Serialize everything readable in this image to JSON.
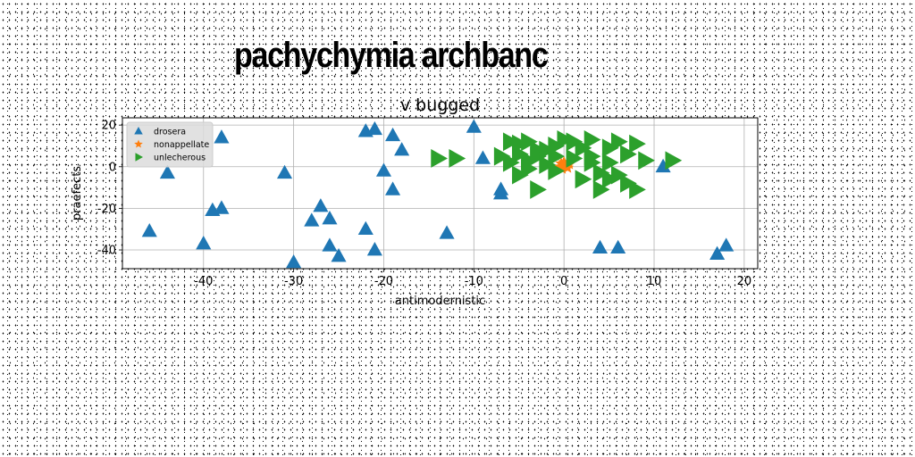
{
  "banner_title": "pachychymia archbanc",
  "chart_data": {
    "type": "scatter",
    "title": "v  bugged",
    "xlabel": "antimodernistic",
    "ylabel": "praefects",
    "xlim": [
      -49,
      21.5
    ],
    "ylim": [
      -49,
      23.5
    ],
    "xticks": [
      -40,
      -30,
      -20,
      -10,
      0,
      10,
      20
    ],
    "yticks": [
      -40,
      -20,
      0,
      20
    ],
    "grid": true,
    "legend": "top-left",
    "series": [
      {
        "name": "drosera",
        "marker": "triangle-up",
        "color": "#1f77b4",
        "points": [
          [
            -46,
            -31
          ],
          [
            -44,
            -3
          ],
          [
            -40,
            -37
          ],
          [
            -39,
            -21
          ],
          [
            -38,
            -20
          ],
          [
            -38,
            14
          ],
          [
            -31,
            -3
          ],
          [
            -30,
            -46
          ],
          [
            -28,
            -26
          ],
          [
            -27,
            -19
          ],
          [
            -26,
            -25
          ],
          [
            -26,
            -38
          ],
          [
            -25,
            -43
          ],
          [
            -22,
            17
          ],
          [
            -22,
            -30
          ],
          [
            -21,
            18
          ],
          [
            -21,
            -40
          ],
          [
            -20,
            -2
          ],
          [
            -19,
            15
          ],
          [
            -19,
            -11
          ],
          [
            -18,
            8
          ],
          [
            -13,
            -32
          ],
          [
            -10,
            19
          ],
          [
            -9,
            4
          ],
          [
            -7,
            -11
          ],
          [
            -7,
            -13
          ],
          [
            4,
            -39
          ],
          [
            6,
            -39
          ],
          [
            11,
            0
          ],
          [
            17,
            -42
          ],
          [
            18,
            -38
          ]
        ]
      },
      {
        "name": "nonappellate",
        "marker": "star",
        "color": "#ff7f0e",
        "points": [
          [
            -0.3,
            1.5
          ],
          [
            0.3,
            0.5
          ],
          [
            -0.2,
            -1
          ],
          [
            0.4,
            -0.5
          ],
          [
            0,
            2.2
          ],
          [
            0.6,
            1.2
          ],
          [
            -0.5,
            0
          ]
        ]
      },
      {
        "name": "unlecherous",
        "marker": "triangle-right",
        "color": "#2ca02c",
        "points": [
          [
            -14,
            4
          ],
          [
            -12,
            4
          ],
          [
            -7,
            5
          ],
          [
            -6,
            12
          ],
          [
            -6,
            2
          ],
          [
            -5,
            6
          ],
          [
            -5,
            11
          ],
          [
            -4,
            12
          ],
          [
            -4,
            3
          ],
          [
            -3,
            8
          ],
          [
            -3,
            5
          ],
          [
            -2,
            1
          ],
          [
            -2,
            8
          ],
          [
            -3,
            -11
          ],
          [
            -1,
            5
          ],
          [
            -1,
            10
          ],
          [
            0,
            13
          ],
          [
            1,
            12
          ],
          [
            1,
            4
          ],
          [
            2,
            -6
          ],
          [
            2,
            9
          ],
          [
            3,
            13
          ],
          [
            3,
            5
          ],
          [
            4,
            -3
          ],
          [
            4,
            -11
          ],
          [
            5,
            2
          ],
          [
            5,
            9
          ],
          [
            6,
            12
          ],
          [
            6,
            -4
          ],
          [
            7,
            -8
          ],
          [
            7,
            6
          ],
          [
            8,
            11
          ],
          [
            8,
            -11
          ],
          [
            9,
            3
          ],
          [
            12,
            3
          ],
          [
            3,
            2
          ],
          [
            -4,
            -1
          ],
          [
            -5,
            -4
          ],
          [
            -1,
            -2
          ],
          [
            5,
            -6
          ]
        ]
      }
    ]
  }
}
